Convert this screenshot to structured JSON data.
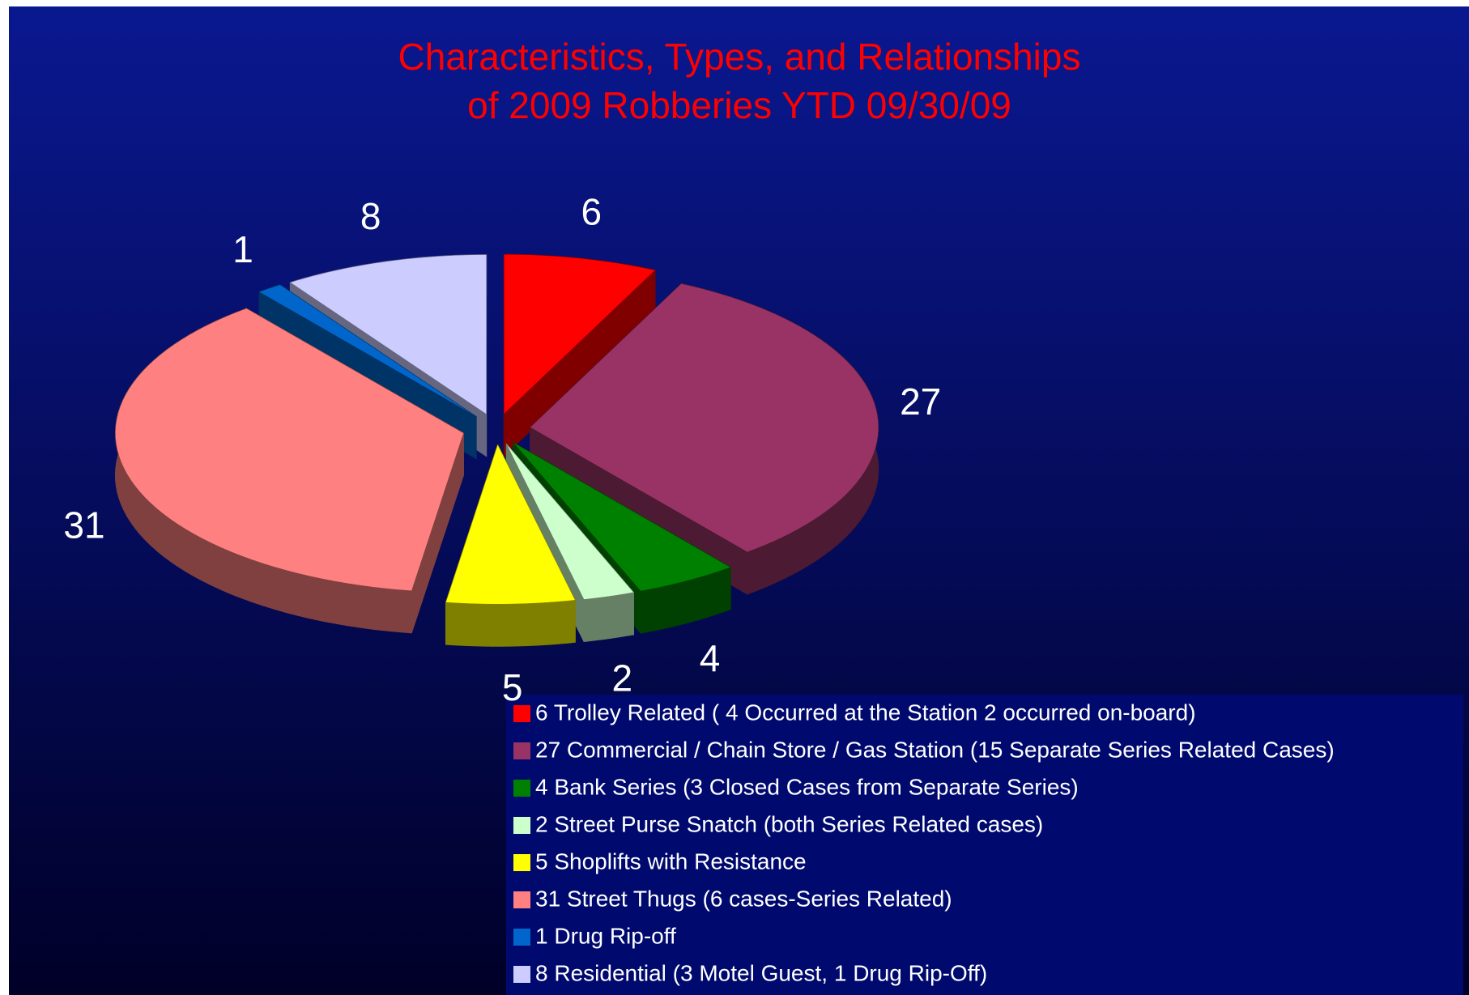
{
  "chart_data": {
    "type": "pie3d",
    "title": [
      "Characteristics, Types, and Relationships",
      "of  2009 Robberies YTD 09/30/09"
    ],
    "categories": [
      "6 Trolley Related ( 4 Occurred at the Station 2 occurred on-board)",
      "27 Commercial / Chain Store / Gas Station  (15 Separate Series Related Cases)",
      "4 Bank Series (3 Closed Cases from Separate Series)",
      "2 Street Purse Snatch  (both Series Related cases)",
      "5 Shoplifts with Resistance",
      "31 Street Thugs (6 cases-Series Related)",
      "1 Drug Rip-off",
      "8 Residential  (3 Motel Guest, 1 Drug Rip-Off)"
    ],
    "values": [
      6,
      27,
      4,
      2,
      5,
      31,
      1,
      8
    ],
    "colors": [
      "#ff0000",
      "#993366",
      "#008000",
      "#ccffcc",
      "#ffff00",
      "#ff8080",
      "#0066cc",
      "#ccccff"
    ],
    "legend": "bottom-right"
  }
}
